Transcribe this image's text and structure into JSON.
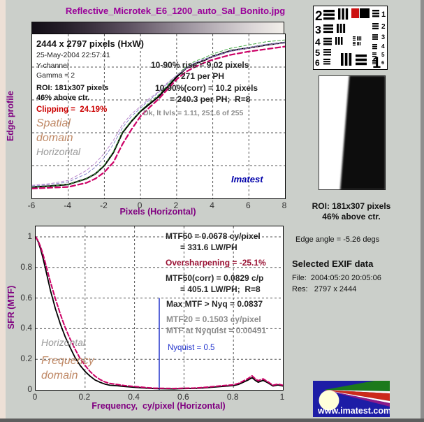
{
  "window": {
    "title": "Reflective_Microtek_E6_1200_auto_Sal_Bonito.jpg",
    "watermark": "Imatest",
    "website": "www.imatest.com"
  },
  "colors": {
    "background": "#CBCFCA",
    "title_purple": "#990099",
    "axis_purple": "#800080",
    "accent_magenta": "#CC0066",
    "clipping_red": "#CC0000",
    "oversharp_dark_red": "#991133",
    "domain_tan": "#BF8865",
    "gray_stat": "#8C8C8C",
    "nyquist_blue": "#2233CC",
    "imatest_navy": "#0000AA",
    "roi_marker_red": "#CC1111",
    "logo_blue": "#1D1DA6"
  },
  "edge_panel": {
    "ylabel": "Edge profile",
    "xlabel": "Pixels (Horizontal)",
    "image_size": "2444 x 2797 pixels (HxW)",
    "timestamp": "25-May-2004 22:57:41",
    "channel": "Y-channel",
    "gamma": "Gamma = 2",
    "roi_line1": "ROI: 181x307 pixels",
    "roi_line2": "46% above ctr.",
    "clipping": "Clipping =  24.19%",
    "domain_label": "Spatial\ndomain",
    "orientation_label": "Horizontal",
    "rise": "10-90% rise = 9.02 pixels",
    "rise_per_ph": "271 per PH",
    "rise_corr": "10-90%(corr) = 10.2 pixels",
    "rise_corr_per_ph": "= 240.3 per PH;  R=8",
    "levels": "Dk, lt lvls = 1.11, 251.6 of 255"
  },
  "mtf_panel": {
    "ylabel": "SFR (MTF)",
    "xlabel": "Frequency,  cy/pixel (Horizontal)",
    "mtf50": "MTF50 = 0.0678 cy/pixel",
    "mtf50_lwph": "= 331.6 LW/PH",
    "oversharpening": "Oversharpening = -25.1%",
    "mtf50_corr": "MTF50(corr) = 0.0829 c/p",
    "mtf50_corr_lwph": "= 405.1 LW/PH;  R=8",
    "max_mtf": "Max MTF > Nyq = 0.0837",
    "mtf20": "MTF20 = 0.1503 cy/pixel",
    "mtf_at_nyquist": "MTF at Nyquist = 0.00491",
    "nyquist_label": "Nyquist = 0.5",
    "domain_label": "Frequency\ndomain",
    "orientation_label": "Horizontal"
  },
  "sidebar": {
    "roi_caption_line1": "ROI: 181x307 pixels",
    "roi_caption_line2": "46% above ctr.",
    "edge_angle": "Edge angle = -5.26 degs",
    "exif_heading": "Selected EXIF data",
    "exif_file": "File:  2004:05:20 20:05:06",
    "exif_res": "Res:   2797 x 2444"
  },
  "chart_data": [
    {
      "id": "edge",
      "type": "line",
      "title": "",
      "xlabel": "Pixels (Horizontal)",
      "ylabel": "Edge profile",
      "xlim": [
        -6,
        8
      ],
      "ylim": [
        0,
        1
      ],
      "x_ticks": [
        -6,
        -4,
        -2,
        0,
        2,
        4,
        6,
        8
      ],
      "grid_x": [
        -4,
        -2,
        0,
        2,
        4,
        6
      ],
      "grid_y": [
        0.2,
        0.4,
        0.6,
        0.8
      ],
      "legend_position": "none",
      "series": [
        {
          "name": "edge-profile",
          "color": "#000000",
          "width": 2.2,
          "dash": null,
          "x": [
            -6,
            -5,
            -4,
            -3,
            -2.5,
            -2,
            -1.5,
            -1,
            -0.5,
            0,
            0.5,
            1,
            1.5,
            2,
            2.5,
            3,
            3.5,
            4,
            5,
            6,
            7,
            8
          ],
          "y": [
            0.07,
            0.075,
            0.085,
            0.12,
            0.15,
            0.2,
            0.28,
            0.4,
            0.47,
            0.53,
            0.575,
            0.62,
            0.68,
            0.74,
            0.79,
            0.82,
            0.84,
            0.865,
            0.9,
            0.917,
            0.935,
            0.95
          ]
        },
        {
          "name": "edge-profile-corrected",
          "color": "#CC0066",
          "width": 2.2,
          "dash": "7,4",
          "x": [
            -6,
            -5,
            -4,
            -3,
            -2.5,
            -2,
            -1.5,
            -1,
            -0.5,
            0,
            0.5,
            1,
            1.5,
            2,
            2.5,
            3,
            3.5,
            4,
            5,
            6,
            7,
            8
          ],
          "y": [
            0.06,
            0.065,
            0.07,
            0.095,
            0.12,
            0.16,
            0.22,
            0.33,
            0.42,
            0.5,
            0.555,
            0.605,
            0.665,
            0.725,
            0.77,
            0.8,
            0.825,
            0.845,
            0.875,
            0.895,
            0.91,
            0.925
          ]
        },
        {
          "name": "edge-fit-green",
          "color": "#44AA44",
          "width": 1,
          "dash": "4,3",
          "x": [
            -6,
            -5,
            -4,
            -3,
            -2.5,
            -2,
            -1.5,
            -1,
            -0.5,
            0,
            0.5,
            1,
            1.5,
            2,
            2.5,
            3,
            3.5,
            4,
            5,
            6,
            7,
            8
          ],
          "y": [
            0.07,
            0.075,
            0.085,
            0.12,
            0.15,
            0.205,
            0.285,
            0.405,
            0.475,
            0.535,
            0.585,
            0.63,
            0.69,
            0.75,
            0.8,
            0.835,
            0.855,
            0.88,
            0.915,
            0.935,
            0.955,
            0.965
          ]
        },
        {
          "name": "edge-aux-blue",
          "color": "#8888CC",
          "width": 1,
          "dash": "4,3",
          "x": [
            -6,
            -5,
            -4,
            -3,
            -2.5,
            -2,
            -1.5,
            -1,
            -0.5,
            0,
            0.5,
            1,
            1.5,
            2,
            2.5,
            3,
            3.5,
            4,
            5,
            6,
            7,
            8
          ],
          "y": [
            0.075,
            0.085,
            0.1,
            0.15,
            0.19,
            0.25,
            0.33,
            0.43,
            0.5,
            0.55,
            0.6,
            0.645,
            0.7,
            0.75,
            0.79,
            0.825,
            0.848,
            0.865,
            0.9,
            0.92,
            0.94,
            0.95
          ]
        },
        {
          "name": "edge-aux-violet",
          "color": "#BB88CC",
          "width": 1,
          "dash": "4,3",
          "x": [
            -6,
            -5,
            -4,
            -3,
            -2.5,
            -2,
            -1.5,
            -1,
            -0.5,
            0,
            0.5,
            1,
            1.5,
            2,
            2.5,
            3,
            3.5,
            4,
            5,
            6,
            7,
            8
          ],
          "y": [
            0.08,
            0.09,
            0.11,
            0.17,
            0.215,
            0.275,
            0.355,
            0.45,
            0.515,
            0.56,
            0.61,
            0.65,
            0.705,
            0.75,
            0.788,
            0.82,
            0.843,
            0.86,
            0.895,
            0.915,
            0.935,
            0.945
          ]
        }
      ]
    },
    {
      "id": "mtf",
      "type": "line",
      "title": "",
      "xlabel": "Frequency,  cy/pixel (Horizontal)",
      "ylabel": "SFR (MTF)",
      "xlim": [
        0,
        1
      ],
      "ylim": [
        0,
        1.0685
      ],
      "x_ticks": [
        0,
        0.2,
        0.4,
        0.6,
        0.8,
        1
      ],
      "y_ticks": [
        0,
        0.2,
        0.4,
        0.6,
        0.8,
        1
      ],
      "grid_x": [
        0.2,
        0.4,
        0.6,
        0.8
      ],
      "grid_y": [
        0.2,
        0.4,
        0.6,
        0.8,
        1
      ],
      "legend_position": "none",
      "vline": {
        "name": "nyquist-line",
        "x": 0.5,
        "y0": 0,
        "y1": 0.6,
        "color": "#2233CC",
        "width": 1.5,
        "label": "Nyquist = 0.5"
      },
      "series": [
        {
          "name": "mtf",
          "color": "#000000",
          "width": 1.8,
          "dash": null,
          "x": [
            0,
            0.01,
            0.02,
            0.03,
            0.04,
            0.05,
            0.06,
            0.07,
            0.08,
            0.09,
            0.1,
            0.12,
            0.14,
            0.16,
            0.18,
            0.2,
            0.22,
            0.24,
            0.26,
            0.28,
            0.3,
            0.33,
            0.36,
            0.4,
            0.44,
            0.48,
            0.52,
            0.56,
            0.6,
            0.64,
            0.68,
            0.72,
            0.76,
            0.8,
            0.82,
            0.84,
            0.86,
            0.875,
            0.89,
            0.9,
            0.92,
            0.94,
            0.96,
            0.98,
            1.0
          ],
          "y": [
            1.0,
            0.97,
            0.92,
            0.86,
            0.79,
            0.72,
            0.65,
            0.59,
            0.53,
            0.48,
            0.43,
            0.345,
            0.275,
            0.21,
            0.16,
            0.12,
            0.09,
            0.065,
            0.05,
            0.038,
            0.03,
            0.027,
            0.022,
            0.017,
            0.012,
            0.008,
            0.007,
            0.006,
            0.008,
            0.009,
            0.013,
            0.018,
            0.023,
            0.028,
            0.035,
            0.05,
            0.065,
            0.08,
            0.06,
            0.05,
            0.062,
            0.045,
            0.025,
            0.032,
            0.025
          ]
        },
        {
          "name": "mtf-corrected",
          "color": "#CC0066",
          "width": 2,
          "dash": "6,3",
          "x": [
            0,
            0.01,
            0.02,
            0.03,
            0.04,
            0.05,
            0.06,
            0.07,
            0.08,
            0.09,
            0.1,
            0.12,
            0.14,
            0.16,
            0.18,
            0.2,
            0.22,
            0.24,
            0.26,
            0.28,
            0.3,
            0.33,
            0.36,
            0.4,
            0.44,
            0.48,
            0.52,
            0.56,
            0.6,
            0.64,
            0.68,
            0.72,
            0.76,
            0.8,
            0.82,
            0.84,
            0.86,
            0.875,
            0.89,
            0.9,
            0.92,
            0.94,
            0.96,
            0.98,
            1.0
          ],
          "y": [
            1.0,
            0.975,
            0.935,
            0.885,
            0.825,
            0.765,
            0.705,
            0.65,
            0.595,
            0.545,
            0.495,
            0.405,
            0.33,
            0.265,
            0.205,
            0.16,
            0.12,
            0.09,
            0.068,
            0.052,
            0.042,
            0.035,
            0.028,
            0.022,
            0.016,
            0.011,
            0.01,
            0.009,
            0.011,
            0.012,
            0.016,
            0.022,
            0.028,
            0.033,
            0.042,
            0.058,
            0.075,
            0.092,
            0.07,
            0.06,
            0.072,
            0.052,
            0.03,
            0.038,
            0.03
          ]
        }
      ]
    }
  ]
}
